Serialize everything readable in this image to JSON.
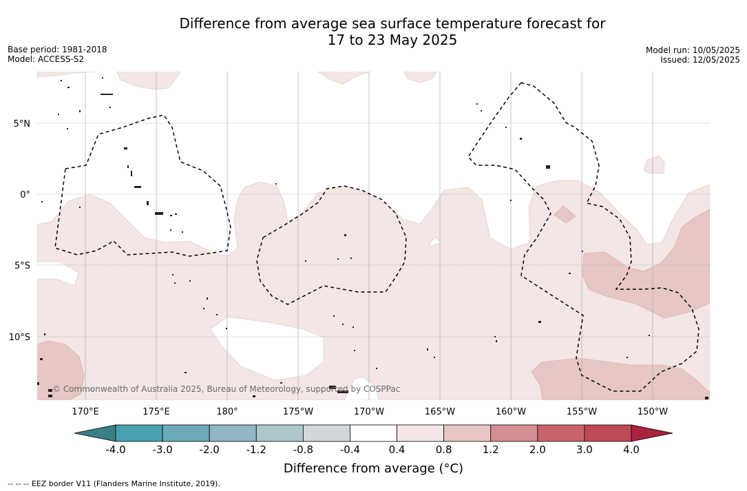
{
  "title": {
    "line1": "Difference from average sea surface temperature forecast for",
    "line2": "17 to 23 May 2025"
  },
  "meta_left": {
    "base_period": "Base period: 1981-2018",
    "model": "Model: ACCESS-S2"
  },
  "meta_right": {
    "model_run": "Model run: 10/05/2025",
    "issued": "Issued: 12/05/2025"
  },
  "map": {
    "lat_labels": [
      "5°N",
      "0°",
      "5°S",
      "10°S"
    ],
    "lon_labels": [
      "170°E",
      "175°E",
      "180°",
      "175°W",
      "170°W",
      "165°W",
      "160°W",
      "155°W",
      "150°W"
    ],
    "copyright": "© Commonwealth of Australia 2025, Bureau of Meteorology, supported by COSPPac",
    "colors": {
      "anomaly_0_4_0_8": "#f3e6e5",
      "anomaly_0_8_1_2": "#e6c7c3",
      "gridline": "#888888",
      "eez_border": "#000000"
    }
  },
  "colorbar": {
    "ticks": [
      "-4.0",
      "-3.0",
      "-2.0",
      "-1.2",
      "-0.8",
      "-0.4",
      "0.4",
      "0.8",
      "1.2",
      "2.0",
      "3.0",
      "4.0"
    ],
    "colors": [
      "#3a7f86",
      "#4a9fb0",
      "#6ea9b8",
      "#8fb6c2",
      "#adc7cb",
      "#d2d7d9",
      "#ffffff",
      "#f3e6e5",
      "#e6c7c3",
      "#d48e94",
      "#c8636e",
      "#bd4856",
      "#a9223e"
    ],
    "title": "Difference from average (°C)"
  },
  "footnote": {
    "marker": "-- -- --",
    "text": "EEZ border V11 (Flanders Marine Institute, 2019)."
  }
}
